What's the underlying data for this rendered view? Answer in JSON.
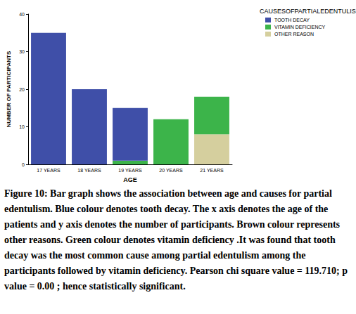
{
  "chart_data": {
    "type": "bar",
    "stacked": true,
    "legend_title": "CAUSESOFPARTIALEDENTULISM",
    "x_label": "AGE",
    "y_label": "NUMBER OF PARTICIPANTS",
    "categories": [
      "17 YEARS",
      "18 YEARS",
      "19 YEARS",
      "20 YEARS",
      "21 YEARS"
    ],
    "series": [
      {
        "name": "TOOTH DECAY",
        "color": "#3f4fa8",
        "values": [
          35,
          20,
          14,
          0,
          0
        ]
      },
      {
        "name": "VITAMIN DEFICIENCY",
        "color": "#3cb44a",
        "values": [
          0,
          0,
          1,
          12,
          10
        ]
      },
      {
        "name": "OTHER REASON",
        "color": "#d5cf9e",
        "values": [
          0,
          0,
          0,
          0,
          8
        ]
      }
    ],
    "ylim": [
      0,
      40
    ],
    "yticks": [
      0,
      10,
      20,
      30,
      40
    ],
    "grid": false,
    "legend": "top right",
    "caption": "Figure 10: Bar graph shows the association between age and causes for partial edentulism. Blue colour denotes tooth decay. The x axis denotes the age of the patients and y axis denotes the number of participants. Brown colour represents other reasons. Green colour denotes vitamin deficiency .It was found that tooth decay was the most common cause among partial edentulism among the participants followed by vitamin deficiency. Pearson chi square value = 119.710; p value = 0.00 ; hence statistically significant."
  }
}
